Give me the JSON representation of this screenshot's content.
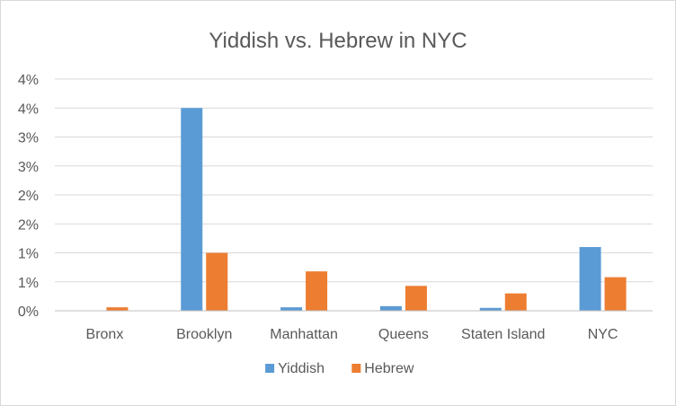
{
  "chart_data": {
    "type": "bar",
    "title": "Yiddish vs. Hebrew in NYC",
    "xlabel": "",
    "ylabel": "",
    "categories": [
      "Bronx",
      "Brooklyn",
      "Manhattan",
      "Queens",
      "Staten Island",
      "NYC"
    ],
    "series": [
      {
        "name": "Yiddish",
        "color": "#5b9bd5",
        "values": [
          0.0,
          3.5,
          0.06,
          0.08,
          0.05,
          1.1
        ]
      },
      {
        "name": "Hebrew",
        "color": "#ed7d31",
        "values": [
          0.06,
          1.0,
          0.68,
          0.43,
          0.3,
          0.58
        ]
      }
    ],
    "ylim": [
      0,
      4.0
    ],
    "ytick_values": [
      0,
      0.5,
      1.0,
      1.5,
      2.0,
      2.5,
      3.0,
      3.5,
      4.0
    ],
    "ytick_labels": [
      "0%",
      "1%",
      "1%",
      "2%",
      "2%",
      "3%",
      "3%",
      "4%",
      "4%"
    ],
    "grid": true,
    "legend_position": "bottom"
  }
}
